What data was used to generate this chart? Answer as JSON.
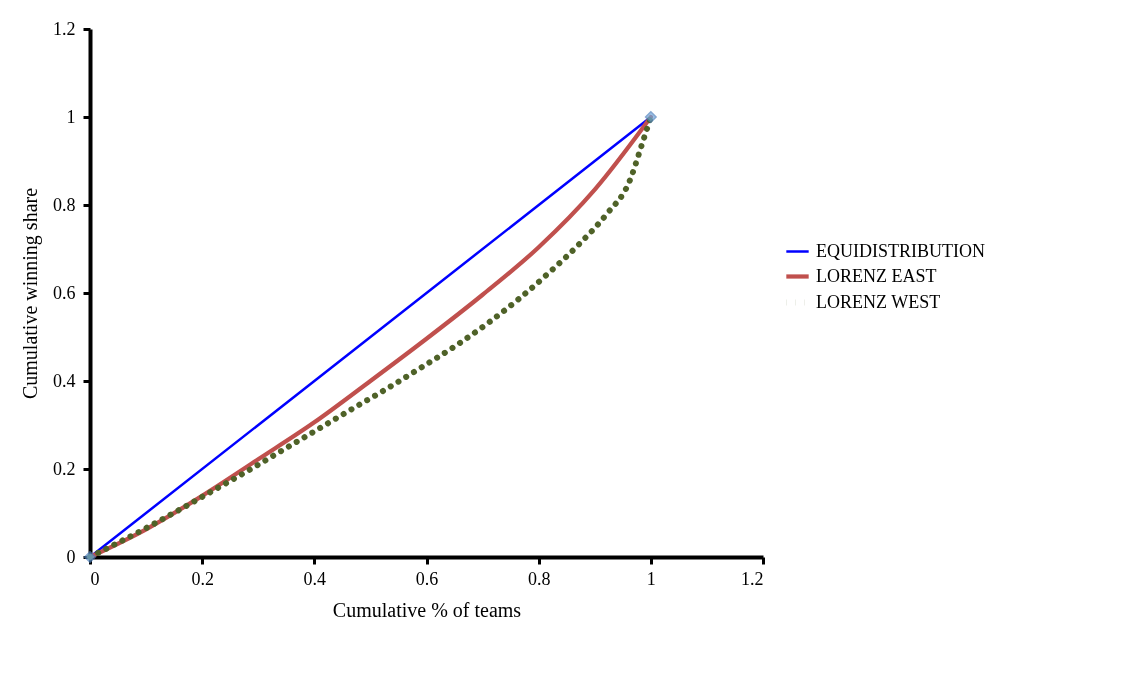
{
  "chart_data": {
    "type": "line",
    "xlabel": "Cumulative % of teams",
    "ylabel": "Cumulative winning share",
    "xlim": [
      0,
      1.2
    ],
    "xticks": [
      0,
      0.2,
      0.4,
      0.6,
      0.8,
      1,
      1.2
    ],
    "ylim": [
      0,
      1.2
    ],
    "yticks": [
      0,
      0.2,
      0.4,
      0.6,
      0.8,
      1,
      1.2
    ],
    "grid": false,
    "legend": "right",
    "series": [
      {
        "name": "EQUIDISTRIBUTION",
        "color": "#0000ff",
        "marker": "diamond",
        "line_style": "solid",
        "x": [
          0,
          1
        ],
        "values": [
          0,
          1
        ]
      },
      {
        "name": "LORENZ EAST",
        "color": "#c0504d",
        "marker": "none",
        "line_style": "solid",
        "x": [
          0,
          0.1,
          0.2,
          0.3,
          0.4,
          0.5,
          0.6,
          0.7,
          0.8,
          0.9,
          1
        ],
        "values": [
          0,
          0.063,
          0.139,
          0.222,
          0.306,
          0.4,
          0.496,
          0.596,
          0.704,
          0.835,
          1
        ]
      },
      {
        "name": "LORENZ WEST",
        "color": "#4f6228",
        "marker": "none",
        "line_style": "dotted",
        "x": [
          0,
          0.096,
          0.159,
          0.221,
          0.283,
          0.345,
          0.406,
          0.468,
          0.53,
          0.591,
          0.652,
          0.71,
          0.767,
          0.821,
          0.873,
          0.921,
          0.962,
          0.985,
          1
        ],
        "values": [
          0,
          0.063,
          0.107,
          0.152,
          0.197,
          0.244,
          0.29,
          0.337,
          0.383,
          0.431,
          0.48,
          0.532,
          0.589,
          0.649,
          0.712,
          0.779,
          0.854,
          0.941,
          1
        ]
      }
    ]
  }
}
